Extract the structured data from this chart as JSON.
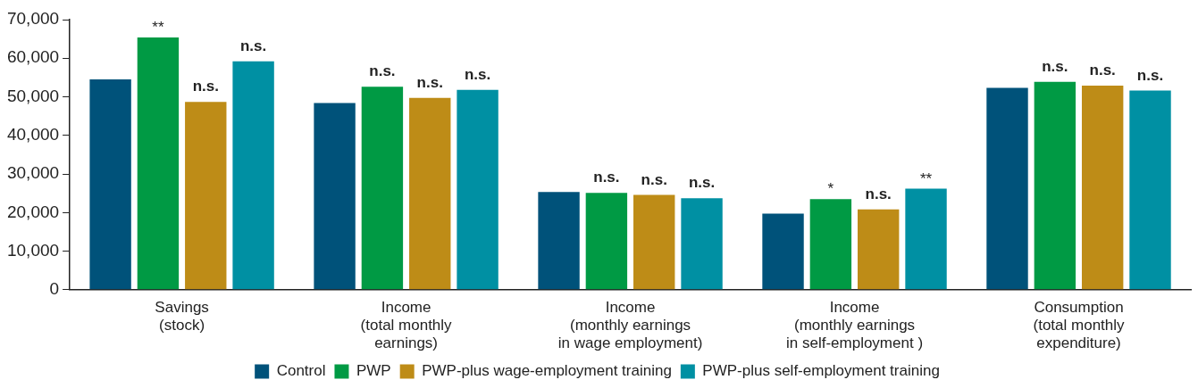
{
  "chart_data": {
    "type": "bar",
    "categories": [
      "Savings\n(stock)",
      "Income\n(total monthly\nearnings)",
      "Income\n(monthly earnings\nin wage employment)",
      "Income\n(monthly earnings\nin self-employment )",
      "Consumption\n(total monthly\nexpenditure)"
    ],
    "series": [
      {
        "name": "Control",
        "color": "#00527a",
        "values": [
          54500,
          48400,
          25300,
          19700,
          52300
        ]
      },
      {
        "name": "PWP",
        "color": "#009a44",
        "values": [
          65400,
          52600,
          25100,
          23500,
          53900
        ],
        "value_labels": [
          "**",
          "n.s.",
          "n.s.",
          "*",
          "n.s."
        ]
      },
      {
        "name": "PWP-plus wage-employment training",
        "color": "#be8c17",
        "values": [
          48700,
          49700,
          24600,
          20800,
          52900
        ],
        "value_labels": [
          "n.s.",
          "n.s.",
          "n.s.",
          "n.s.",
          "n.s."
        ]
      },
      {
        "name": "PWP-plus self-employment training",
        "color": "#0090a3",
        "values": [
          59200,
          51800,
          23700,
          26200,
          51600
        ],
        "value_labels": [
          "n.s.",
          "n.s.",
          "n.s.",
          "**",
          "n.s."
        ]
      }
    ],
    "ylim": [
      0,
      70000
    ],
    "yticks": [
      {
        "value": 0,
        "label": "0"
      },
      {
        "value": 10000,
        "label": "10,000"
      },
      {
        "value": 20000,
        "label": "20,000"
      },
      {
        "value": 30000,
        "label": "30,000"
      },
      {
        "value": 40000,
        "label": "40,000"
      },
      {
        "value": 50000,
        "label": "50,000"
      },
      {
        "value": 60000,
        "label": "60,000"
      },
      {
        "value": 70000,
        "label": "70,000"
      }
    ],
    "grid": false,
    "legend": "bottom"
  }
}
